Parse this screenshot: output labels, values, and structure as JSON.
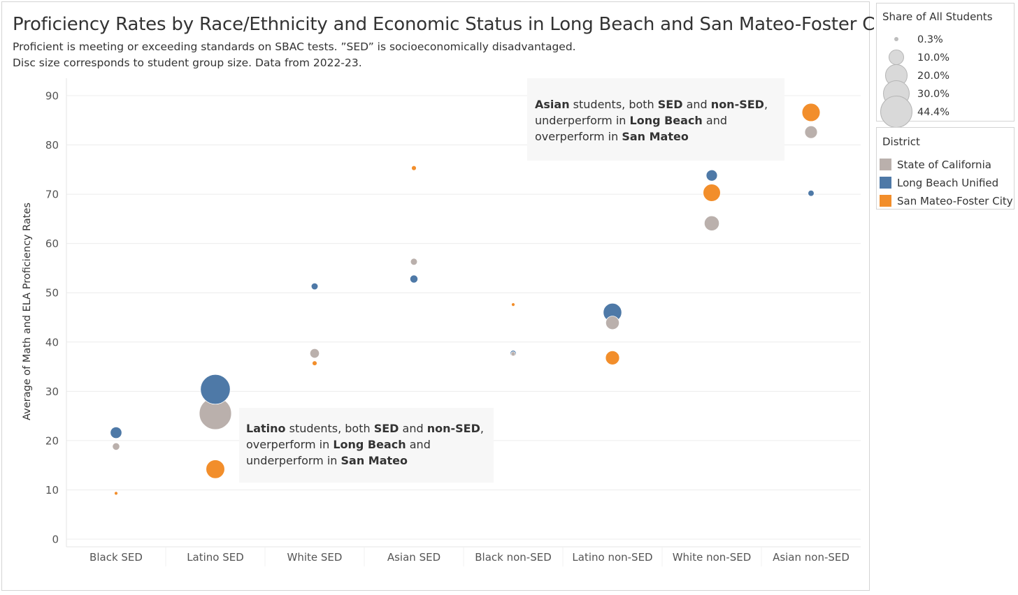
{
  "title": "Proficiency Rates by Race/Ethnicity and Economic Status in Long Beach and San Mateo-Foster City",
  "subtitle_line1": "Proficient is meeting or exceeding standards on SBAC tests. ”SED” is socioeconomically disadvantaged.",
  "subtitle_line2": "Disc size corresponds to student group size. Data from 2022-23.",
  "annotations": {
    "asian": [
      {
        "text": "Asian",
        "bold": true
      },
      {
        "text": " students, both ",
        "bold": false
      },
      {
        "text": "SED",
        "bold": true
      },
      {
        "text": " and ",
        "bold": false
      },
      {
        "text": "non-SED",
        "bold": true
      },
      {
        "text": ", underperform in ",
        "bold": false
      },
      {
        "text": "Long Beach",
        "bold": true
      },
      {
        "text": " and overperform in ",
        "bold": false
      },
      {
        "text": "San Mateo",
        "bold": true
      }
    ],
    "latino": [
      {
        "text": "Latino",
        "bold": true
      },
      {
        "text": " students, both ",
        "bold": false
      },
      {
        "text": "SED",
        "bold": true
      },
      {
        "text": " and ",
        "bold": false
      },
      {
        "text": "non-SED",
        "bold": true
      },
      {
        "text": ", overperform in ",
        "bold": false
      },
      {
        "text": "Long Beach",
        "bold": true
      },
      {
        "text": " and underperform in ",
        "bold": false
      },
      {
        "text": "San Mateo",
        "bold": true
      }
    ]
  },
  "size_legend": {
    "title": "Share of All Students",
    "items": [
      "0.3%",
      "10.0%",
      "20.0%",
      "30.0%",
      "44.4%"
    ],
    "values": [
      0.3,
      10.0,
      20.0,
      30.0,
      44.4
    ],
    "color": "#d9d9d9"
  },
  "district_legend": {
    "title": "District",
    "items": [
      {
        "label": "State of California",
        "color": "#bab0ac"
      },
      {
        "label": "Long Beach Unified",
        "color": "#4e79a7"
      },
      {
        "label": "San Mateo-Foster City",
        "color": "#f28e2b"
      }
    ]
  },
  "chart_data": {
    "type": "scatter",
    "ylabel": "Average of Math and ELA Proficiency Rates",
    "xlabel": "",
    "ylim": [
      0,
      90
    ],
    "yticks": [
      0,
      10,
      20,
      30,
      40,
      50,
      60,
      70,
      80,
      90
    ],
    "grid": true,
    "categories": [
      "Black SED",
      "Latino SED",
      "White SED",
      "Asian SED",
      "Black non-SED",
      "Latino non-SED",
      "White non-SED",
      "Asian non-SED"
    ],
    "series": [
      {
        "name": "State of California",
        "color": "#bab0ac",
        "values": [
          18.8,
          25.5,
          37.7,
          56.3,
          37.6,
          43.9,
          64.1,
          82.6
        ],
        "shares": [
          2.3,
          44.4,
          3.8,
          2.0,
          0.8,
          7.8,
          9.6,
          6.8
        ]
      },
      {
        "name": "Long Beach Unified",
        "color": "#4e79a7",
        "values": [
          21.6,
          30.4,
          51.3,
          52.8,
          37.7,
          46.0,
          73.8,
          70.2
        ],
        "shares": [
          5.7,
          38.0,
          2.0,
          2.7,
          1.6,
          14.6,
          5.4,
          1.6
        ]
      },
      {
        "name": "San Mateo-Foster City",
        "color": "#f28e2b",
        "values": [
          9.3,
          14.2,
          35.7,
          75.3,
          47.6,
          36.8,
          70.3,
          86.6
        ],
        "shares": [
          0.3,
          15.0,
          1.0,
          1.0,
          0.3,
          8.4,
          12.9,
          14.1
        ]
      }
    ]
  }
}
